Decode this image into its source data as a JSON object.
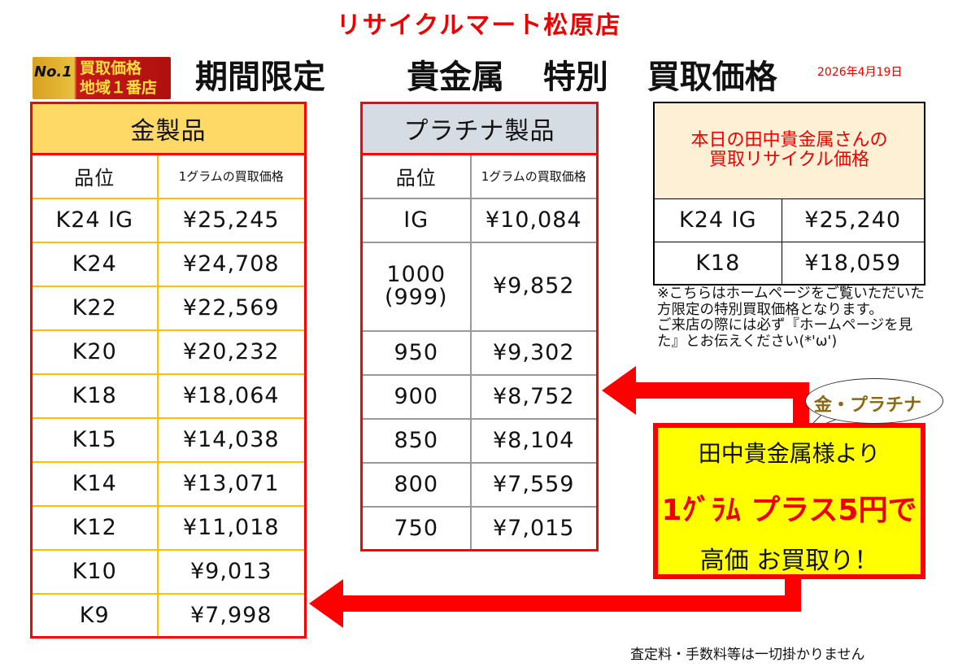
{
  "store_name": "リサイクルマート松原店",
  "badge": {
    "no1": "No.1",
    "line1": "買取価格",
    "line2": "地域１番店"
  },
  "heading": {
    "left": "期間限定",
    "right": "貴金属  特別  買取価格"
  },
  "date": "2026年4月19日",
  "gold": {
    "title": "金製品",
    "col1": "品位",
    "col2": "1グラムの買取価格",
    "rows": [
      [
        "K24 IG",
        "¥25,245"
      ],
      [
        "K24",
        "¥24,708"
      ],
      [
        "K22",
        "¥22,569"
      ],
      [
        "K20",
        "¥20,232"
      ],
      [
        "K18",
        "¥18,064"
      ],
      [
        "K15",
        "¥14,038"
      ],
      [
        "K14",
        "¥13,071"
      ],
      [
        "K12",
        "¥11,018"
      ],
      [
        "K10",
        "¥9,013"
      ],
      [
        "K9",
        "¥7,998"
      ]
    ]
  },
  "platinum": {
    "title": "プラチナ製品",
    "col1": "品位",
    "col2": "1グラムの買取価格",
    "rows": [
      [
        "IG",
        "¥10,084"
      ],
      [
        "1000\n(999)",
        "¥9,852"
      ],
      [
        "950",
        "¥9,302"
      ],
      [
        "900",
        "¥8,752"
      ],
      [
        "850",
        "¥8,104"
      ],
      [
        "800",
        "¥7,559"
      ],
      [
        "750",
        "¥7,015"
      ]
    ]
  },
  "tanaka": {
    "title": "本日の田中貴金属さんの\n買取リサイクル価格",
    "rows": [
      [
        "K24 IG",
        "¥25,240"
      ],
      [
        "K18",
        "¥18,059"
      ]
    ]
  },
  "note": "※こちらはホームページをご覧いただいた方限定の特別買取価格となります。\nご来店の際には必ず『ホームページを見た』とお伝えください(*'ω')",
  "bubble": "金・プラチナ",
  "promo": {
    "line1": "田中貴金属様より",
    "line2": "1ｸﾞﾗﾑ プラス5円で",
    "line3": "高価 お買取り！"
  },
  "footer": "査定料・手数料等は一切掛かりません",
  "colors": {
    "red": "#ff0000",
    "gold_header": "#ffd966",
    "gold_border": "#ffc000",
    "platinum_header": "#d6dce4",
    "promo_bg": "#ffff00"
  }
}
